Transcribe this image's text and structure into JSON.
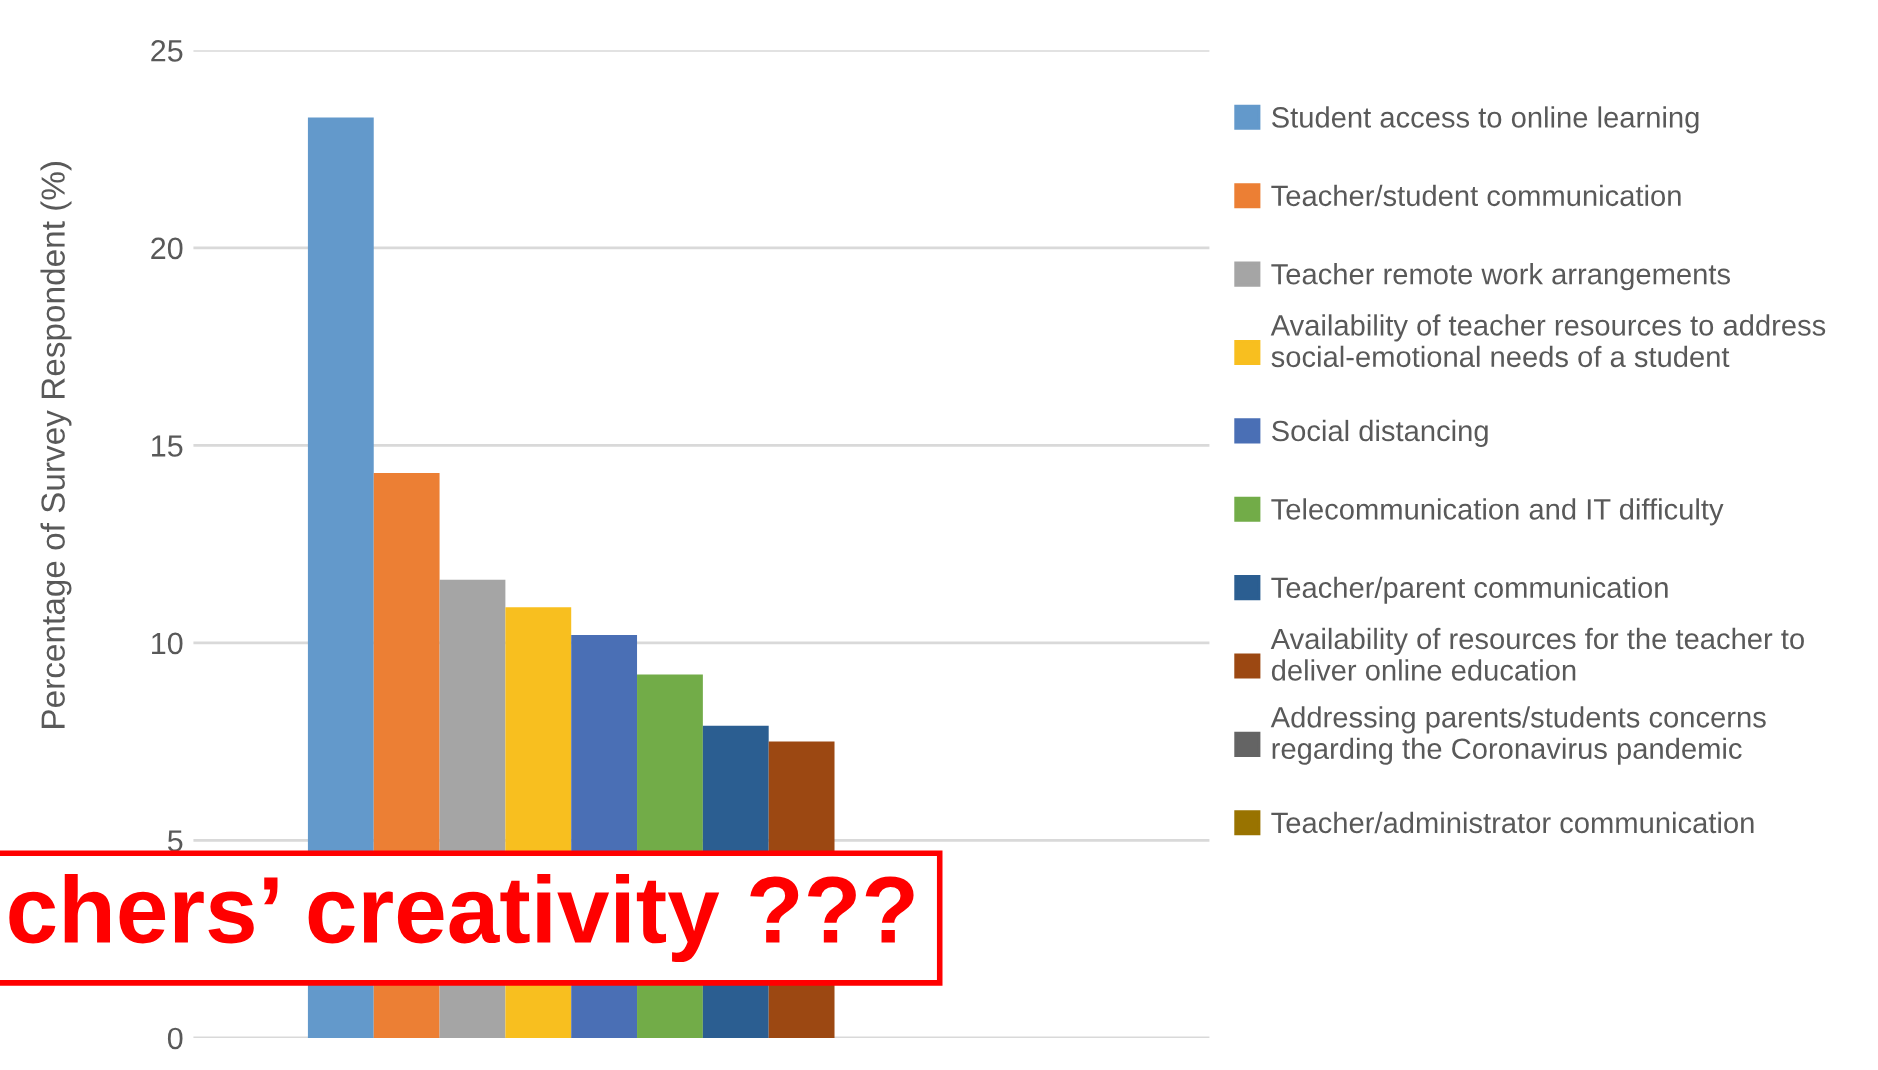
{
  "chart_data": {
    "type": "bar",
    "ylabel": "Percentage of Survey Respondent (%)",
    "categories": [
      null
    ],
    "series": [
      {
        "name": "Student access to online learning",
        "color": "#6399cb",
        "values": [
          23.3
        ]
      },
      {
        "name": "Teacher/student communication",
        "color": "#ec7f34",
        "values": [
          14.3
        ]
      },
      {
        "name": "Teacher remote work arrangements",
        "color": "#a5a5a5",
        "values": [
          11.6
        ]
      },
      {
        "name": "Availability of teacher resources to address social-emotional needs of a student",
        "color": "#f8bf1f",
        "values": [
          10.9
        ]
      },
      {
        "name": "Social distancing",
        "color": "#4a6fb5",
        "values": [
          10.2
        ]
      },
      {
        "name": "Telecommunication and IT difficulty",
        "color": "#72ac48",
        "values": [
          9.2
        ]
      },
      {
        "name": "Teacher/parent communication",
        "color": "#2b5e91",
        "values": [
          7.9
        ]
      },
      {
        "name": "Availability of resources for the teacher to deliver online education",
        "color": "#9c4812",
        "values": [
          7.5
        ]
      },
      {
        "name": "Addressing parents/students concerns regarding the Coronavirus pandemic",
        "color": "#646464",
        "values": [
          null
        ]
      },
      {
        "name": "Teacher/administrator communication",
        "color": "#997300",
        "values": [
          null
        ]
      }
    ],
    "ylim": [
      0,
      25
    ],
    "yticks": [
      0,
      5,
      10,
      15,
      20,
      25
    ],
    "grid": "y",
    "legend": "right",
    "tick_labels": "y",
    "annotations": [
      "chers’ creativity ???"
    ]
  }
}
